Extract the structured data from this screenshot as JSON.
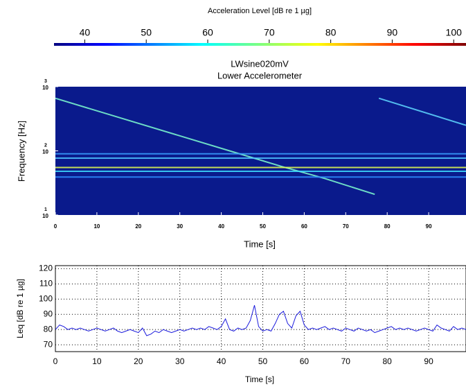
{
  "chart_data": [
    {
      "type": "colorbar",
      "title": "Acceleration Level  [dB re 1 µg]",
      "xlim": [
        35,
        102
      ],
      "xticks": [
        40,
        50,
        60,
        70,
        80,
        90,
        100
      ],
      "colormap": "jet"
    },
    {
      "type": "spectrogram",
      "title": "LWsine020mV",
      "subtitle": "Lower Accelerometer",
      "xlabel": "Time  [s]",
      "ylabel": "Frequency  [Hz]",
      "xlim": [
        0,
        99
      ],
      "xticks": [
        0,
        10,
        20,
        30,
        40,
        50,
        60,
        70,
        80,
        90
      ],
      "ylim": [
        10,
        1000
      ],
      "yscale": "log",
      "yticks": [
        {
          "value": 10,
          "label": "10",
          "exponent": "1"
        },
        {
          "value": 100,
          "label": "10",
          "exponent": "2"
        },
        {
          "value": 1000,
          "label": "10",
          "exponent": "3"
        }
      ],
      "background": "#0a1a8c",
      "series": [
        {
          "color": "#7fffd0",
          "x": [
            0,
            42,
            55,
            65,
            77
          ],
          "values": [
            660,
            100,
            56,
            37,
            21
          ]
        },
        {
          "color": "#5fd8ff",
          "x": [
            78,
            99
          ],
          "values": [
            660,
            250
          ]
        },
        {
          "color": "#3aa0ff",
          "x": [
            0,
            99
          ],
          "values": [
            90,
            90
          ]
        },
        {
          "color": "#50c8ff",
          "x": [
            0,
            99
          ],
          "values": [
            77,
            77
          ]
        },
        {
          "color": "#e8ff50",
          "x": [
            0,
            99
          ],
          "values": [
            55,
            55
          ]
        },
        {
          "color": "#40e0ff",
          "x": [
            0,
            99
          ],
          "values": [
            48,
            48
          ]
        },
        {
          "color": "#3090ff",
          "x": [
            0,
            99
          ],
          "values": [
            39,
            39
          ]
        }
      ]
    },
    {
      "type": "line",
      "xlabel": "Time  [s]",
      "ylabel": "Leq  [dB re 1 µg]",
      "color": "#1a1adc",
      "grid": true,
      "xlim": [
        0,
        99
      ],
      "xticks": [
        0,
        10,
        20,
        30,
        40,
        50,
        60,
        70,
        80,
        90
      ],
      "ylim": [
        65.5,
        122
      ],
      "yticks": [
        70,
        80,
        90,
        100,
        110,
        120
      ],
      "x": [
        0,
        1,
        2,
        3,
        4,
        5,
        6,
        7,
        8,
        9,
        10,
        11,
        12,
        13,
        14,
        15,
        16,
        17,
        18,
        19,
        20,
        21,
        22,
        23,
        24,
        25,
        26,
        27,
        28,
        29,
        30,
        31,
        32,
        33,
        34,
        35,
        36,
        37,
        38,
        39,
        40,
        41,
        42,
        43,
        44,
        45,
        46,
        47,
        48,
        49,
        50,
        51,
        52,
        53,
        54,
        55,
        56,
        57,
        58,
        59,
        60,
        61,
        62,
        63,
        64,
        65,
        66,
        67,
        68,
        69,
        70,
        71,
        72,
        73,
        74,
        75,
        76,
        77,
        78,
        79,
        80,
        81,
        82,
        83,
        84,
        85,
        86,
        87,
        88,
        89,
        90,
        91,
        92,
        93,
        94,
        95,
        96,
        97,
        98,
        99
      ],
      "values": [
        80,
        83,
        82,
        80,
        81,
        80,
        81,
        80,
        79,
        80,
        81,
        80,
        79,
        80,
        81,
        79,
        78,
        79,
        80,
        79,
        78,
        81,
        76,
        77,
        79,
        78,
        80,
        79,
        78,
        79,
        80,
        79,
        80,
        81,
        80,
        81,
        80,
        82,
        81,
        80,
        82,
        87,
        80,
        79,
        81,
        80,
        81,
        86,
        96,
        82,
        79,
        80,
        79,
        84,
        90,
        92,
        84,
        81,
        89,
        92,
        83,
        80,
        81,
        80,
        81,
        82,
        80,
        81,
        80,
        79,
        81,
        80,
        79,
        81,
        80,
        79,
        80,
        78,
        79,
        80,
        81,
        82,
        80,
        81,
        80,
        81,
        80,
        79,
        80,
        81,
        80,
        79,
        83,
        81,
        80,
        79,
        82,
        80,
        81,
        80
      ]
    }
  ]
}
